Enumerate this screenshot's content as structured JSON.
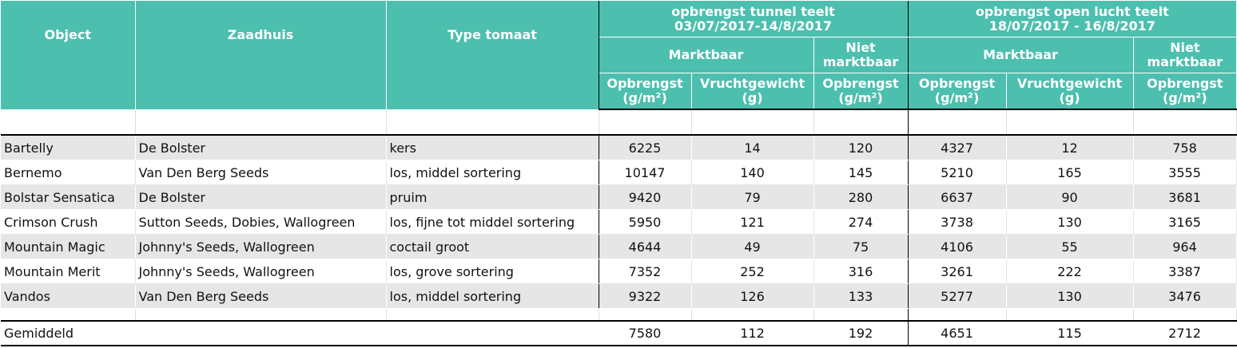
{
  "headers": {
    "object": "Object",
    "zaadhuis": "Zaadhuis",
    "type": "Type tomaat",
    "tunnel_line1": "opbrengst tunnel teelt",
    "tunnel_line2": "03/07/2017-14/8/2017",
    "open_line1": "opbrengst open lucht teelt",
    "open_line2": "18/07/2017 - 16/8/2017",
    "marktbaar": "Marktbaar",
    "niet_line1": "Niet",
    "niet_line2": "marktbaar",
    "opbrengst": "Opbrengst",
    "opbrengst_unit": "(g/m²)",
    "vruchtgewicht": "Vruchtgewicht",
    "vruchtgewicht_unit": "(g)"
  },
  "rows": [
    {
      "object": "Bartelly",
      "zaadhuis": "De Bolster",
      "type": "kers",
      "t_opb": "6225",
      "t_vg": "14",
      "t_niet": "120",
      "o_opb": "4327",
      "o_vg": "12",
      "o_niet": "758"
    },
    {
      "object": "Bernemo",
      "zaadhuis": "Van Den Berg Seeds",
      "type": "los, middel sortering",
      "t_opb": "10147",
      "t_vg": "140",
      "t_niet": "145",
      "o_opb": "5210",
      "o_vg": "165",
      "o_niet": "3555"
    },
    {
      "object": "Bolstar Sensatica",
      "zaadhuis": "De Bolster",
      "type": "pruim",
      "t_opb": "9420",
      "t_vg": "79",
      "t_niet": "280",
      "o_opb": "6637",
      "o_vg": "90",
      "o_niet": "3681"
    },
    {
      "object": "Crimson Crush",
      "zaadhuis": "Sutton Seeds, Dobies, Wallogreen",
      "type": "los, fijne tot middel sortering",
      "t_opb": "5950",
      "t_vg": "121",
      "t_niet": "274",
      "o_opb": "3738",
      "o_vg": "130",
      "o_niet": "3165"
    },
    {
      "object": "Mountain Magic",
      "zaadhuis": "Johnny's Seeds, Wallogreen",
      "type": "coctail groot",
      "t_opb": "4644",
      "t_vg": "49",
      "t_niet": "75",
      "o_opb": "4106",
      "o_vg": "55",
      "o_niet": "964"
    },
    {
      "object": "Mountain Merit",
      "zaadhuis": "Johnny's Seeds, Wallogreen",
      "type": "los, grove sortering",
      "t_opb": "7352",
      "t_vg": "252",
      "t_niet": "316",
      "o_opb": "3261",
      "o_vg": "222",
      "o_niet": "3387"
    },
    {
      "object": "Vandos",
      "zaadhuis": "Van Den Berg Seeds",
      "type": "los, middel sortering",
      "t_opb": "9322",
      "t_vg": "126",
      "t_niet": "133",
      "o_opb": "5277",
      "o_vg": "130",
      "o_niet": "3476"
    }
  ],
  "average": {
    "label": "Gemiddeld",
    "t_opb": "7580",
    "t_vg": "112",
    "t_niet": "192",
    "o_opb": "4651",
    "o_vg": "115",
    "o_niet": "2712"
  }
}
